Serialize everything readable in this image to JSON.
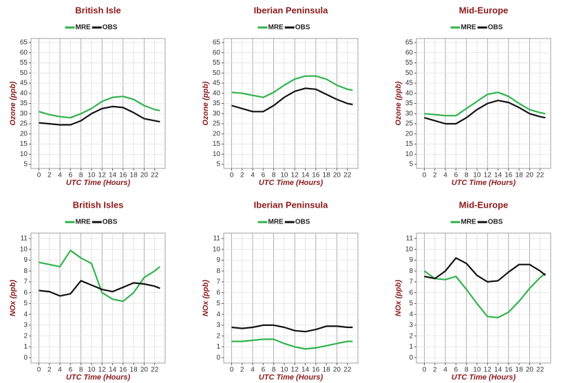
{
  "chart_data": [
    {
      "type": "line",
      "title": "British Isle",
      "xlabel": "UTC Time (Hours)",
      "ylabel": "Ozone (ppb)",
      "x": [
        0,
        2,
        4,
        6,
        8,
        10,
        12,
        14,
        16,
        18,
        20,
        22,
        23
      ],
      "series": [
        {
          "name": "MRE",
          "color": "#2fb34c",
          "values": [
            31,
            29.5,
            28.5,
            28,
            30,
            32.5,
            36,
            38,
            38.5,
            37,
            34,
            32,
            31.5
          ]
        },
        {
          "name": "OBS",
          "color": "#111111",
          "values": [
            25.5,
            25,
            24.5,
            24.5,
            26.5,
            30,
            32.5,
            33.5,
            33,
            30.5,
            27.5,
            26.5,
            26
          ]
        }
      ],
      "xlim": [
        -1.5,
        24
      ],
      "xticks": [
        0,
        2,
        4,
        6,
        8,
        10,
        12,
        14,
        16,
        18,
        20,
        22
      ],
      "ylim": [
        3,
        67
      ],
      "yticks": [
        5,
        10,
        15,
        20,
        25,
        30,
        35,
        40,
        45,
        50,
        55,
        60,
        65
      ],
      "grid": true
    },
    {
      "type": "line",
      "title": "Iberian Peninsula",
      "xlabel": "UTC Time (Hours)",
      "ylabel": "Ozone (ppb)",
      "x": [
        0,
        2,
        4,
        6,
        8,
        10,
        12,
        14,
        16,
        18,
        20,
        22,
        23
      ],
      "series": [
        {
          "name": "MRE",
          "color": "#2fb34c",
          "values": [
            40.5,
            40,
            39,
            38,
            40.5,
            44,
            47,
            48.5,
            48.5,
            47,
            44,
            42,
            41.5
          ]
        },
        {
          "name": "OBS",
          "color": "#111111",
          "values": [
            34,
            32.5,
            31,
            31,
            34,
            38,
            41,
            42.5,
            42,
            39.5,
            37,
            35,
            34.5
          ]
        }
      ],
      "xlim": [
        -1.5,
        24
      ],
      "xticks": [
        0,
        2,
        4,
        6,
        8,
        10,
        12,
        14,
        16,
        18,
        20,
        22
      ],
      "ylim": [
        3,
        67
      ],
      "yticks": [
        5,
        10,
        15,
        20,
        25,
        30,
        35,
        40,
        45,
        50,
        55,
        60,
        65
      ],
      "grid": true
    },
    {
      "type": "line",
      "title": "Mid-Europe",
      "xlabel": "UTC Time (Hours)",
      "ylabel": "Ozone (ppb)",
      "x": [
        0,
        2,
        4,
        6,
        8,
        10,
        12,
        14,
        16,
        18,
        20,
        22,
        23
      ],
      "series": [
        {
          "name": "MRE",
          "color": "#2fb34c",
          "values": [
            30,
            29.5,
            29,
            29,
            32.5,
            36,
            39.5,
            40.5,
            38.5,
            35,
            32,
            30.5,
            30
          ]
        },
        {
          "name": "OBS",
          "color": "#111111",
          "values": [
            28,
            26.5,
            25,
            25,
            28,
            32,
            35,
            36.5,
            35.5,
            33,
            30,
            28.5,
            28
          ]
        }
      ],
      "xlim": [
        -1.5,
        24
      ],
      "xticks": [
        0,
        2,
        4,
        6,
        8,
        10,
        12,
        14,
        16,
        18,
        20,
        22
      ],
      "ylim": [
        3,
        67
      ],
      "yticks": [
        5,
        10,
        15,
        20,
        25,
        30,
        35,
        40,
        45,
        50,
        55,
        60,
        65
      ],
      "grid": true
    },
    {
      "type": "line",
      "title": "British Isles",
      "xlabel": "UTC Time (Hours)",
      "ylabel": "NOx (ppb)",
      "x": [
        0,
        2,
        4,
        6,
        8,
        10,
        12,
        14,
        16,
        18,
        20,
        22,
        23
      ],
      "series": [
        {
          "name": "MRE",
          "color": "#2fb34c",
          "values": [
            8.8,
            8.6,
            8.4,
            9.9,
            9.2,
            8.7,
            6.0,
            5.4,
            5.2,
            6.0,
            7.4,
            8.0,
            8.4
          ]
        },
        {
          "name": "OBS",
          "color": "#111111",
          "values": [
            6.2,
            6.1,
            5.7,
            5.9,
            7.1,
            6.7,
            6.3,
            6.1,
            6.5,
            6.9,
            6.8,
            6.6,
            6.4
          ]
        }
      ],
      "xlim": [
        -1.5,
        24
      ],
      "xticks": [
        0,
        2,
        4,
        6,
        8,
        10,
        12,
        14,
        16,
        18,
        20,
        22
      ],
      "ylim": [
        -0.5,
        11.5
      ],
      "yticks": [
        0,
        1,
        2,
        3,
        4,
        5,
        6,
        7,
        8,
        9,
        10,
        11
      ],
      "grid": true
    },
    {
      "type": "line",
      "title": "Iberian Peninsula",
      "xlabel": "UTC Time (Hours)",
      "ylabel": "NOx (ppb)",
      "x": [
        0,
        2,
        4,
        6,
        8,
        10,
        12,
        14,
        16,
        18,
        20,
        22,
        23
      ],
      "series": [
        {
          "name": "MRE",
          "color": "#2fb34c",
          "values": [
            1.5,
            1.5,
            1.6,
            1.7,
            1.7,
            1.3,
            1.0,
            0.8,
            0.9,
            1.1,
            1.3,
            1.5,
            1.5
          ]
        },
        {
          "name": "OBS",
          "color": "#111111",
          "values": [
            2.8,
            2.7,
            2.8,
            3.0,
            3.0,
            2.8,
            2.5,
            2.4,
            2.6,
            2.9,
            2.9,
            2.8,
            2.8
          ]
        }
      ],
      "xlim": [
        -1.5,
        24
      ],
      "xticks": [
        0,
        2,
        4,
        6,
        8,
        10,
        12,
        14,
        16,
        18,
        20,
        22
      ],
      "ylim": [
        -0.5,
        11.5
      ],
      "yticks": [
        0,
        1,
        2,
        3,
        4,
        5,
        6,
        7,
        8,
        9,
        10,
        11
      ],
      "grid": true
    },
    {
      "type": "line",
      "title": "Mid-Europe",
      "xlabel": "UTC Time (Hours)",
      "ylabel": "NOx (ppb)",
      "x": [
        0,
        2,
        4,
        6,
        8,
        10,
        12,
        14,
        16,
        18,
        20,
        22,
        23
      ],
      "series": [
        {
          "name": "MRE",
          "color": "#2fb34c",
          "values": [
            8.0,
            7.3,
            7.2,
            7.5,
            6.3,
            5.0,
            3.8,
            3.7,
            4.2,
            5.2,
            6.4,
            7.4,
            7.8
          ]
        },
        {
          "name": "OBS",
          "color": "#111111",
          "values": [
            7.5,
            7.3,
            8.0,
            9.2,
            8.7,
            7.6,
            7.0,
            7.1,
            7.9,
            8.6,
            8.6,
            8.0,
            7.6
          ]
        }
      ],
      "xlim": [
        -1.5,
        24
      ],
      "xticks": [
        0,
        2,
        4,
        6,
        8,
        10,
        12,
        14,
        16,
        18,
        20,
        22
      ],
      "ylim": [
        -0.5,
        11.5
      ],
      "yticks": [
        0,
        1,
        2,
        3,
        4,
        5,
        6,
        7,
        8,
        9,
        10,
        11
      ],
      "grid": true
    }
  ]
}
